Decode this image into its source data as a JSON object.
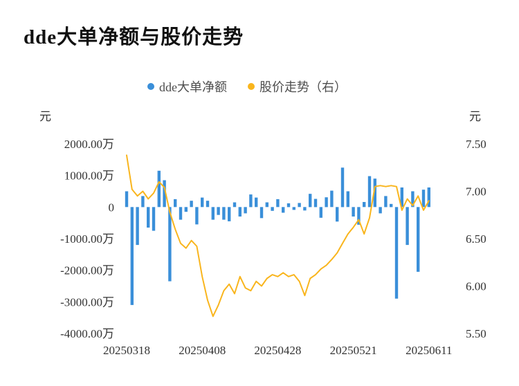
{
  "page": {
    "title": "dde大单净额与股价走势"
  },
  "legend": [
    {
      "label": "dde大单净额",
      "color": "#3a8fd9"
    },
    {
      "label": "股价走势（右）",
      "color": "#f9b51d"
    }
  ],
  "chart_data": {
    "type": "bar",
    "title": "dde大单净额与股价走势",
    "grid": false,
    "legend_position": "top",
    "x": [
      "20250318",
      "20250319",
      "20250320",
      "20250321",
      "20250324",
      "20250325",
      "20250326",
      "20250327",
      "20250328",
      "20250331",
      "20250401",
      "20250402",
      "20250403",
      "20250407",
      "20250408",
      "20250409",
      "20250410",
      "20250411",
      "20250414",
      "20250415",
      "20250416",
      "20250417",
      "20250418",
      "20250421",
      "20250422",
      "20250423",
      "20250424",
      "20250425",
      "20250428",
      "20250429",
      "20250430",
      "20250506",
      "20250507",
      "20250508",
      "20250509",
      "20250512",
      "20250513",
      "20250514",
      "20250515",
      "20250516",
      "20250519",
      "20250520",
      "20250521",
      "20250522",
      "20250523",
      "20250526",
      "20250527",
      "20250528",
      "20250529",
      "20250530",
      "20250603",
      "20250604",
      "20250605",
      "20250606",
      "20250609",
      "20250610",
      "20250611"
    ],
    "x_ticks": [
      {
        "index": 0,
        "label": "20250318"
      },
      {
        "index": 14,
        "label": "20250408"
      },
      {
        "index": 28,
        "label": "20250428"
      },
      {
        "index": 42,
        "label": "20250521"
      },
      {
        "index": 56,
        "label": "20250611"
      }
    ],
    "left_axis": {
      "unit": "元",
      "min": -4000,
      "max": 2000,
      "value_unit": "万",
      "ticks": [
        {
          "value": 2000,
          "label": "2000.00万"
        },
        {
          "value": 1000,
          "label": "1000.00万"
        },
        {
          "value": 0,
          "label": "0"
        },
        {
          "value": -1000,
          "label": "-1000.00万"
        },
        {
          "value": -2000,
          "label": "-2000.00万"
        },
        {
          "value": -3000,
          "label": "-3000.00万"
        },
        {
          "value": -4000,
          "label": "-4000.00万"
        }
      ]
    },
    "right_axis": {
      "unit": "元",
      "min": 5.5,
      "max": 7.5,
      "ticks": [
        {
          "value": 7.5,
          "label": "7.50"
        },
        {
          "value": 7.0,
          "label": "7.00"
        },
        {
          "value": 6.5,
          "label": "6.50"
        },
        {
          "value": 6.0,
          "label": "6.00"
        },
        {
          "value": 5.5,
          "label": "5.50"
        }
      ]
    },
    "series": [
      {
        "name": "dde大单净额",
        "type": "bar",
        "axis": "left",
        "unit": "万元",
        "color": "#3a8fd9",
        "values": [
          500,
          -3100,
          -1200,
          350,
          -650,
          -750,
          1150,
          850,
          -2350,
          250,
          -400,
          -150,
          200,
          -550,
          300,
          200,
          -400,
          -250,
          -400,
          -450,
          150,
          -300,
          -200,
          400,
          300,
          -350,
          150,
          -120,
          250,
          -180,
          120,
          -90,
          130,
          -110,
          420,
          260,
          -340,
          310,
          520,
          -460,
          1250,
          500,
          -300,
          -560,
          160,
          980,
          900,
          -200,
          350,
          100,
          -2900,
          620,
          -1200,
          500,
          -2050,
          550,
          620
        ]
      },
      {
        "name": "股价走势（右）",
        "type": "line",
        "axis": "right",
        "unit": "元",
        "color": "#f9b51d",
        "values": [
          7.38,
          7.02,
          6.95,
          7.0,
          6.92,
          6.98,
          7.1,
          7.04,
          6.78,
          6.6,
          6.45,
          6.4,
          6.48,
          6.42,
          6.1,
          5.85,
          5.68,
          5.8,
          5.95,
          6.02,
          5.92,
          6.1,
          5.98,
          5.95,
          6.05,
          6.0,
          6.08,
          6.12,
          6.1,
          6.14,
          6.1,
          6.12,
          6.05,
          5.9,
          6.08,
          6.12,
          6.18,
          6.22,
          6.28,
          6.35,
          6.45,
          6.55,
          6.62,
          6.7,
          6.55,
          6.72,
          7.05,
          7.06,
          7.05,
          7.06,
          7.05,
          6.8,
          6.92,
          6.85,
          6.95,
          6.8,
          6.9
        ]
      }
    ]
  }
}
